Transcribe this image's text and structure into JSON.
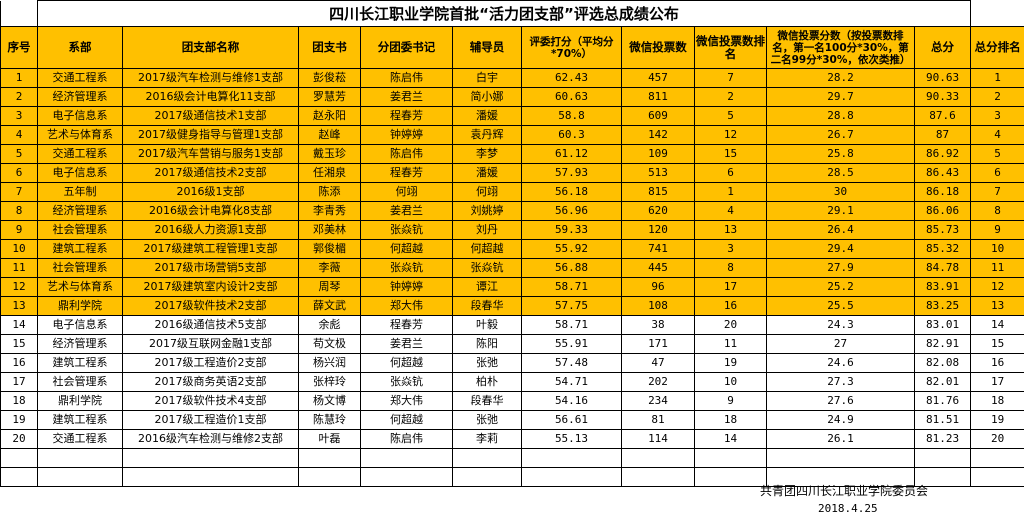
{
  "title": "四川长江职业学院首批“活力团支部”评选总成绩公布",
  "headers": {
    "idx": "序号",
    "dept": "系部",
    "branch": "团支部名称",
    "secretary": "团支书",
    "committee": "分团委书记",
    "counselor": "辅导员",
    "judge": "评委打分（平均分*70%）",
    "votes": "微信投票数",
    "vote_rank": "微信投票数排名",
    "vote_score": "微信投票分数（按投票数排名，第一名100分*30%，第二名99分*30%，依次类推）",
    "total": "总分",
    "total_rank": "总分排名"
  },
  "rows": [
    {
      "idx": "1",
      "dept": "交通工程系",
      "branch": "2017级汽车检测与维修1支部",
      "secretary": "彭俊菘",
      "committee": "陈启伟",
      "counselor": "白宇",
      "judge": "62.43",
      "votes": "457",
      "vote_rank": "7",
      "vote_score": "28.2",
      "total": "90.63",
      "total_rank": "1"
    },
    {
      "idx": "2",
      "dept": "经济管理系",
      "branch": "2016级会计电算化11支部",
      "secretary": "罗慧芳",
      "committee": "姜君兰",
      "counselor": "简小娜",
      "judge": "60.63",
      "votes": "811",
      "vote_rank": "2",
      "vote_score": "29.7",
      "total": "90.33",
      "total_rank": "2"
    },
    {
      "idx": "3",
      "dept": "电子信息系",
      "branch": "2017级通信技术1支部",
      "secretary": "赵永阳",
      "committee": "程春芳",
      "counselor": "潘媛",
      "judge": "58.8",
      "votes": "609",
      "vote_rank": "5",
      "vote_score": "28.8",
      "total": "87.6",
      "total_rank": "3"
    },
    {
      "idx": "4",
      "dept": "艺术与体育系",
      "branch": "2017级健身指导与管理1支部",
      "secretary": "赵峰",
      "committee": "钟婷婷",
      "counselor": "袁丹辉",
      "judge": "60.3",
      "votes": "142",
      "vote_rank": "12",
      "vote_score": "26.7",
      "total": "87",
      "total_rank": "4"
    },
    {
      "idx": "5",
      "dept": "交通工程系",
      "branch": "2017级汽车营销与服务1支部",
      "secretary": "戴玉珍",
      "committee": "陈启伟",
      "counselor": "李梦",
      "judge": "61.12",
      "votes": "109",
      "vote_rank": "15",
      "vote_score": "25.8",
      "total": "86.92",
      "total_rank": "5"
    },
    {
      "idx": "6",
      "dept": "电子信息系",
      "branch": "2017级通信技术2支部",
      "secretary": "任湘泉",
      "committee": "程春芳",
      "counselor": "潘媛",
      "judge": "57.93",
      "votes": "513",
      "vode_rank": "",
      "vote_rank": "6",
      "vote_score": "28.5",
      "total": "86.43",
      "total_rank": "6"
    },
    {
      "idx": "7",
      "dept": "五年制",
      "branch": "2016级1支部",
      "secretary": "陈添",
      "committee": "何翊",
      "counselor": "何翊",
      "judge": "56.18",
      "votes": "815",
      "vote_rank": "1",
      "vote_score": "30",
      "total": "86.18",
      "total_rank": "7"
    },
    {
      "idx": "8",
      "dept": "经济管理系",
      "branch": "2016级会计电算化8支部",
      "secretary": "李青秀",
      "committee": "姜君兰",
      "counselor": "刘姚婷",
      "judge": "56.96",
      "votes": "620",
      "vote_rank": "4",
      "vote_score": "29.1",
      "total": "86.06",
      "total_rank": "8"
    },
    {
      "idx": "9",
      "dept": "社会管理系",
      "branch": "2016级人力资源1支部",
      "secretary": "邓美林",
      "committee": "张焱钪",
      "counselor": "刘丹",
      "judge": "59.33",
      "votes": "120",
      "vote_rank": "13",
      "vote_score": "26.4",
      "total": "85.73",
      "total_rank": "9"
    },
    {
      "idx": "10",
      "dept": "建筑工程系",
      "branch": "2017级建筑工程管理1支部",
      "secretary": "郭俊楣",
      "committee": "何超越",
      "counselor": "何超越",
      "judge": "55.92",
      "votes": "741",
      "vote_rank": "3",
      "vote_score": "29.4",
      "total": "85.32",
      "total_rank": "10"
    },
    {
      "idx": "11",
      "dept": "社会管理系",
      "branch": "2017级市场营销5支部",
      "secretary": "李薇",
      "committee": "张焱钪",
      "counselor": "张焱钪",
      "judge": "56.88",
      "votes": "445",
      "vote_rank": "8",
      "vote_score": "27.9",
      "total": "84.78",
      "total_rank": "11"
    },
    {
      "idx": "12",
      "dept": "艺术与体育系",
      "branch": "2017级建筑室内设计2支部",
      "secretary": "周琴",
      "committee": "钟婷婷",
      "counselor": "谭江",
      "judge": "58.71",
      "votes": "96",
      "vote_rank": "17",
      "vote_score": "25.2",
      "total": "83.91",
      "total_rank": "12"
    },
    {
      "idx": "13",
      "dept": "鼎利学院",
      "branch": "2017级软件技术2支部",
      "secretary": "薛文武",
      "committee": "郑大伟",
      "counselor": "段春华",
      "judge": "57.75",
      "votes": "108",
      "vote_rank": "16",
      "vote_score": "25.5",
      "total": "83.25",
      "total_rank": "13"
    },
    {
      "idx": "14",
      "dept": "电子信息系",
      "branch": "2016级通信技术5支部",
      "secretary": "余彪",
      "committee": "程春芳",
      "counselor": "叶毅",
      "judge": "58.71",
      "votes": "38",
      "vote_rank": "20",
      "vote_score": "24.3",
      "total": "83.01",
      "total_rank": "14"
    },
    {
      "idx": "15",
      "dept": "经济管理系",
      "branch": "2017级互联网金融1支部",
      "secretary": "苟文极",
      "committee": "姜君兰",
      "counselor": "陈阳",
      "judge": "55.91",
      "votes": "171",
      "vote_rank": "11",
      "vote_score": "27",
      "total": "82.91",
      "total_rank": "15"
    },
    {
      "idx": "16",
      "dept": "建筑工程系",
      "branch": "2017级工程造价2支部",
      "secretary": "杨兴润",
      "committee": "何超越",
      "counselor": "张弛",
      "judge": "57.48",
      "votes": "47",
      "vote_rank": "19",
      "vote_score": "24.6",
      "total": "82.08",
      "total_rank": "16"
    },
    {
      "idx": "17",
      "dept": "社会管理系",
      "branch": "2017级商务英语2支部",
      "secretary": "张梓玲",
      "committee": "张焱钪",
      "counselor": "柏朴",
      "judge": "54.71",
      "votes": "202",
      "vote_rank": "10",
      "vote_score": "27.3",
      "total": "82.01",
      "total_rank": "17"
    },
    {
      "idx": "18",
      "dept": "鼎利学院",
      "branch": "2017级软件技术4支部",
      "secretary": "杨文博",
      "committee": "郑大伟",
      "counselor": "段春华",
      "judge": "54.16",
      "votes": "234",
      "vote_rank": "9",
      "vote_score": "27.6",
      "total": "81.76",
      "total_rank": "18"
    },
    {
      "idx": "19",
      "dept": "建筑工程系",
      "branch": "2017级工程造价1支部",
      "secretary": "陈慧玲",
      "committee": "何超越",
      "counselor": "张弛",
      "judge": "56.61",
      "votes": "81",
      "vote_rank": "18",
      "vote_score": "24.9",
      "total": "81.51",
      "total_rank": "19"
    },
    {
      "idx": "20",
      "dept": "交通工程系",
      "branch": "2016级汽车检测与维修2支部",
      "secretary": "叶磊",
      "committee": "陈启伟",
      "counselor": "李莉",
      "judge": "55.13",
      "votes": "114",
      "vote_rank": "14",
      "vote_score": "26.1",
      "total": "81.23",
      "total_rank": "20"
    }
  ],
  "footer": {
    "org": "共青团四川长江职业学院委员会",
    "date": "2018.4.25"
  },
  "colors": {
    "highlight": "#ffc000",
    "plain": "#ffffff"
  }
}
